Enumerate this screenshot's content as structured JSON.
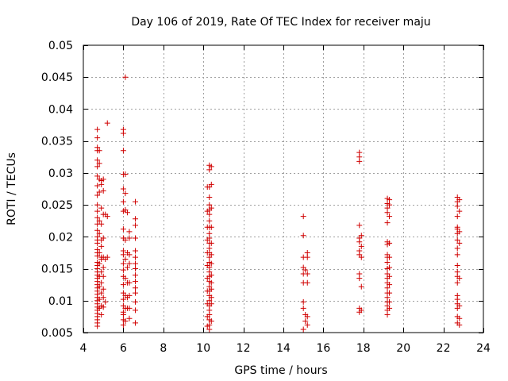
{
  "chart_data": {
    "type": "scatter",
    "title": "Day 106 of 2019, Rate Of TEC Index for receiver maju",
    "xlabel": "GPS time / hours",
    "ylabel": "ROTI / TECUs",
    "xlim": [
      4,
      24
    ],
    "ylim": [
      0.005,
      0.05
    ],
    "xticks": [
      4,
      6,
      8,
      10,
      12,
      14,
      16,
      18,
      20,
      22,
      24
    ],
    "yticks": [
      0.005,
      0.01,
      0.015,
      0.02,
      0.025,
      0.03,
      0.035,
      0.04,
      0.045,
      0.05
    ],
    "xtick_labels": [
      "4",
      "6",
      "8",
      "10",
      "12",
      "14",
      "16",
      "18",
      "20",
      "22",
      "24"
    ],
    "ytick_labels": [
      "0.005",
      "0.01",
      "0.015",
      "0.02",
      "0.025",
      "0.03",
      "0.035",
      "0.04",
      "0.045",
      "0.05"
    ],
    "grid": true,
    "marker": "+",
    "color": "#d00000",
    "series": [
      {
        "name": "ROTI",
        "points": [
          [
            4.7,
            0.0368
          ],
          [
            4.7,
            0.0355
          ],
          [
            4.7,
            0.034
          ],
          [
            4.7,
            0.0335
          ],
          [
            4.7,
            0.032
          ],
          [
            4.7,
            0.031
          ],
          [
            4.7,
            0.0295
          ],
          [
            4.7,
            0.028
          ],
          [
            4.7,
            0.0265
          ],
          [
            4.7,
            0.025
          ],
          [
            4.7,
            0.024
          ],
          [
            4.7,
            0.023
          ],
          [
            4.7,
            0.022
          ],
          [
            4.7,
            0.021
          ],
          [
            4.7,
            0.02
          ],
          [
            4.7,
            0.0195
          ],
          [
            4.7,
            0.019
          ],
          [
            4.7,
            0.018
          ],
          [
            4.7,
            0.0175
          ],
          [
            4.7,
            0.017
          ],
          [
            4.7,
            0.016
          ],
          [
            4.7,
            0.0155
          ],
          [
            4.7,
            0.015
          ],
          [
            4.7,
            0.0145
          ],
          [
            4.7,
            0.014
          ],
          [
            4.7,
            0.0135
          ],
          [
            4.7,
            0.013
          ],
          [
            4.7,
            0.0125
          ],
          [
            4.7,
            0.012
          ],
          [
            4.7,
            0.0115
          ],
          [
            4.7,
            0.011
          ],
          [
            4.7,
            0.0105
          ],
          [
            4.7,
            0.01
          ],
          [
            4.7,
            0.0095
          ],
          [
            4.7,
            0.009
          ],
          [
            4.7,
            0.0085
          ],
          [
            4.7,
            0.008
          ],
          [
            4.7,
            0.0075
          ],
          [
            4.7,
            0.007
          ],
          [
            4.7,
            0.0065
          ],
          [
            4.7,
            0.006
          ],
          [
            4.8,
            0.0335
          ],
          [
            4.8,
            0.0315
          ],
          [
            4.8,
            0.029
          ],
          [
            4.8,
            0.027
          ],
          [
            4.8,
            0.0225
          ],
          [
            4.8,
            0.0205
          ],
          [
            4.8,
            0.0175
          ],
          [
            4.8,
            0.0158
          ],
          [
            4.8,
            0.0138
          ],
          [
            4.8,
            0.0122
          ],
          [
            4.8,
            0.0102
          ],
          [
            4.8,
            0.0088
          ],
          [
            4.9,
            0.0288
          ],
          [
            4.9,
            0.0282
          ],
          [
            4.9,
            0.0245
          ],
          [
            4.9,
            0.022
          ],
          [
            4.9,
            0.0195
          ],
          [
            4.9,
            0.0185
          ],
          [
            4.9,
            0.0168
          ],
          [
            4.9,
            0.0165
          ],
          [
            4.9,
            0.0145
          ],
          [
            4.9,
            0.0128
          ],
          [
            4.9,
            0.0112
          ],
          [
            4.9,
            0.0092
          ],
          [
            4.9,
            0.0078
          ],
          [
            5.0,
            0.029
          ],
          [
            5.0,
            0.0272
          ],
          [
            5.0,
            0.0235
          ],
          [
            5.0,
            0.0198
          ],
          [
            5.0,
            0.0168
          ],
          [
            5.0,
            0.0152
          ],
          [
            5.0,
            0.0138
          ],
          [
            5.0,
            0.0118
          ],
          [
            5.0,
            0.0105
          ],
          [
            5.0,
            0.009
          ],
          [
            5.1,
            0.0235
          ],
          [
            5.1,
            0.0165
          ],
          [
            5.1,
            0.0098
          ],
          [
            5.2,
            0.0378
          ],
          [
            5.2,
            0.0232
          ],
          [
            5.2,
            0.0168
          ],
          [
            6.0,
            0.0368
          ],
          [
            6.0,
            0.0362
          ],
          [
            6.0,
            0.0335
          ],
          [
            6.0,
            0.0298
          ],
          [
            6.0,
            0.0275
          ],
          [
            6.0,
            0.0255
          ],
          [
            6.0,
            0.024
          ],
          [
            6.0,
            0.0212
          ],
          [
            6.0,
            0.0198
          ],
          [
            6.0,
            0.0178
          ],
          [
            6.0,
            0.0172
          ],
          [
            6.0,
            0.0158
          ],
          [
            6.0,
            0.0148
          ],
          [
            6.0,
            0.0138
          ],
          [
            6.0,
            0.0125
          ],
          [
            6.0,
            0.0112
          ],
          [
            6.0,
            0.0102
          ],
          [
            6.0,
            0.0092
          ],
          [
            6.0,
            0.0082
          ],
          [
            6.0,
            0.0078
          ],
          [
            6.0,
            0.007
          ],
          [
            6.0,
            0.0062
          ],
          [
            6.1,
            0.045
          ],
          [
            6.1,
            0.0298
          ],
          [
            6.1,
            0.0268
          ],
          [
            6.1,
            0.0242
          ],
          [
            6.1,
            0.0195
          ],
          [
            6.1,
            0.0165
          ],
          [
            6.1,
            0.0135
          ],
          [
            6.1,
            0.0108
          ],
          [
            6.1,
            0.0088
          ],
          [
            6.1,
            0.0068
          ],
          [
            6.2,
            0.0238
          ],
          [
            6.2,
            0.0175
          ],
          [
            6.2,
            0.0152
          ],
          [
            6.2,
            0.0128
          ],
          [
            6.2,
            0.0105
          ],
          [
            6.2,
            0.0088
          ],
          [
            6.3,
            0.0208
          ],
          [
            6.3,
            0.0198
          ],
          [
            6.3,
            0.0172
          ],
          [
            6.3,
            0.0158
          ],
          [
            6.3,
            0.0128
          ],
          [
            6.3,
            0.0108
          ],
          [
            6.3,
            0.0088
          ],
          [
            6.3,
            0.0072
          ],
          [
            6.6,
            0.0255
          ],
          [
            6.6,
            0.0228
          ],
          [
            6.6,
            0.0218
          ],
          [
            6.6,
            0.0198
          ],
          [
            6.6,
            0.0178
          ],
          [
            6.6,
            0.0168
          ],
          [
            6.6,
            0.0158
          ],
          [
            6.6,
            0.015
          ],
          [
            6.6,
            0.014
          ],
          [
            6.6,
            0.013
          ],
          [
            6.6,
            0.012
          ],
          [
            6.6,
            0.0112
          ],
          [
            6.6,
            0.0098
          ],
          [
            6.6,
            0.0085
          ],
          [
            6.6,
            0.0065
          ],
          [
            10.2,
            0.0278
          ],
          [
            10.2,
            0.024
          ],
          [
            10.2,
            0.0215
          ],
          [
            10.2,
            0.0195
          ],
          [
            10.2,
            0.0175
          ],
          [
            10.2,
            0.0155
          ],
          [
            10.2,
            0.0135
          ],
          [
            10.2,
            0.0115
          ],
          [
            10.2,
            0.0095
          ],
          [
            10.2,
            0.0075
          ],
          [
            10.2,
            0.006
          ],
          [
            10.3,
            0.0312
          ],
          [
            10.3,
            0.0305
          ],
          [
            10.3,
            0.0278
          ],
          [
            10.3,
            0.0262
          ],
          [
            10.3,
            0.025
          ],
          [
            10.3,
            0.0242
          ],
          [
            10.3,
            0.0235
          ],
          [
            10.3,
            0.0225
          ],
          [
            10.3,
            0.0215
          ],
          [
            10.3,
            0.0205
          ],
          [
            10.3,
            0.0198
          ],
          [
            10.3,
            0.019
          ],
          [
            10.3,
            0.0182
          ],
          [
            10.3,
            0.0175
          ],
          [
            10.3,
            0.0168
          ],
          [
            10.3,
            0.016
          ],
          [
            10.3,
            0.0152
          ],
          [
            10.3,
            0.0145
          ],
          [
            10.3,
            0.0138
          ],
          [
            10.3,
            0.013
          ],
          [
            10.3,
            0.0122
          ],
          [
            10.3,
            0.0115
          ],
          [
            10.3,
            0.0108
          ],
          [
            10.3,
            0.01
          ],
          [
            10.3,
            0.0092
          ],
          [
            10.3,
            0.0085
          ],
          [
            10.3,
            0.0078
          ],
          [
            10.3,
            0.007
          ],
          [
            10.3,
            0.0062
          ],
          [
            10.3,
            0.0055
          ],
          [
            10.4,
            0.031
          ],
          [
            10.4,
            0.0282
          ],
          [
            10.4,
            0.0245
          ],
          [
            10.4,
            0.0215
          ],
          [
            10.4,
            0.019
          ],
          [
            10.4,
            0.0172
          ],
          [
            10.4,
            0.0158
          ],
          [
            10.4,
            0.014
          ],
          [
            10.4,
            0.0128
          ],
          [
            10.4,
            0.0118
          ],
          [
            10.4,
            0.0105
          ],
          [
            10.4,
            0.0095
          ],
          [
            10.4,
            0.0068
          ],
          [
            15.0,
            0.0232
          ],
          [
            15.0,
            0.0202
          ],
          [
            15.0,
            0.0168
          ],
          [
            15.0,
            0.0152
          ],
          [
            15.0,
            0.0142
          ],
          [
            15.0,
            0.0128
          ],
          [
            15.0,
            0.0098
          ],
          [
            15.0,
            0.0088
          ],
          [
            15.0,
            0.0055
          ],
          [
            15.1,
            0.0148
          ],
          [
            15.1,
            0.0078
          ],
          [
            15.1,
            0.0068
          ],
          [
            15.2,
            0.0175
          ],
          [
            15.2,
            0.0168
          ],
          [
            15.2,
            0.0142
          ],
          [
            15.2,
            0.0128
          ],
          [
            15.2,
            0.0075
          ],
          [
            15.2,
            0.0062
          ],
          [
            17.8,
            0.0332
          ],
          [
            17.8,
            0.0325
          ],
          [
            17.8,
            0.0318
          ],
          [
            17.8,
            0.0218
          ],
          [
            17.8,
            0.0198
          ],
          [
            17.8,
            0.0192
          ],
          [
            17.8,
            0.0178
          ],
          [
            17.8,
            0.0172
          ],
          [
            17.8,
            0.0142
          ],
          [
            17.8,
            0.0135
          ],
          [
            17.8,
            0.0088
          ],
          [
            17.8,
            0.0082
          ],
          [
            17.9,
            0.0202
          ],
          [
            17.9,
            0.0185
          ],
          [
            17.9,
            0.0168
          ],
          [
            17.9,
            0.0122
          ],
          [
            17.9,
            0.0085
          ],
          [
            19.2,
            0.026
          ],
          [
            19.2,
            0.0252
          ],
          [
            19.2,
            0.0245
          ],
          [
            19.2,
            0.0238
          ],
          [
            19.2,
            0.0222
          ],
          [
            19.2,
            0.0192
          ],
          [
            19.2,
            0.0188
          ],
          [
            19.2,
            0.0172
          ],
          [
            19.2,
            0.0168
          ],
          [
            19.2,
            0.016
          ],
          [
            19.2,
            0.015
          ],
          [
            19.2,
            0.0142
          ],
          [
            19.2,
            0.0135
          ],
          [
            19.2,
            0.0128
          ],
          [
            19.2,
            0.012
          ],
          [
            19.2,
            0.0112
          ],
          [
            19.2,
            0.0105
          ],
          [
            19.2,
            0.0098
          ],
          [
            19.2,
            0.0092
          ],
          [
            19.2,
            0.0085
          ],
          [
            19.2,
            0.0078
          ],
          [
            19.3,
            0.0258
          ],
          [
            19.3,
            0.025
          ],
          [
            19.3,
            0.0232
          ],
          [
            19.3,
            0.019
          ],
          [
            19.3,
            0.0168
          ],
          [
            19.3,
            0.0152
          ],
          [
            19.3,
            0.0138
          ],
          [
            19.3,
            0.0125
          ],
          [
            19.3,
            0.0112
          ],
          [
            19.3,
            0.0098
          ],
          [
            19.3,
            0.0088
          ],
          [
            22.7,
            0.0262
          ],
          [
            22.7,
            0.0255
          ],
          [
            22.7,
            0.0248
          ],
          [
            22.7,
            0.0232
          ],
          [
            22.7,
            0.0215
          ],
          [
            22.7,
            0.0212
          ],
          [
            22.7,
            0.0205
          ],
          [
            22.7,
            0.0195
          ],
          [
            22.7,
            0.0182
          ],
          [
            22.7,
            0.0172
          ],
          [
            22.7,
            0.0155
          ],
          [
            22.7,
            0.0145
          ],
          [
            22.7,
            0.0138
          ],
          [
            22.7,
            0.0128
          ],
          [
            22.7,
            0.0108
          ],
          [
            22.7,
            0.0102
          ],
          [
            22.7,
            0.0095
          ],
          [
            22.7,
            0.0088
          ],
          [
            22.7,
            0.0075
          ],
          [
            22.7,
            0.0065
          ],
          [
            22.8,
            0.0258
          ],
          [
            22.8,
            0.024
          ],
          [
            22.8,
            0.0208
          ],
          [
            22.8,
            0.019
          ],
          [
            22.8,
            0.0135
          ],
          [
            22.8,
            0.0092
          ],
          [
            22.8,
            0.0072
          ],
          [
            22.8,
            0.0062
          ]
        ]
      }
    ]
  }
}
